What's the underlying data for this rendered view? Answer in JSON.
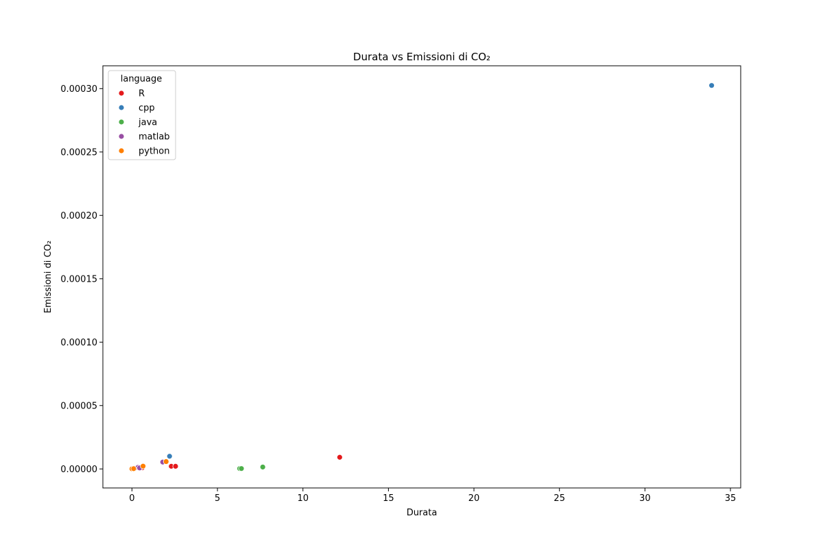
{
  "chart_data": {
    "type": "scatter",
    "title": "Durata vs Emissioni di CO₂",
    "xlabel": "Durata",
    "ylabel": "Emissioni di CO₂",
    "xlim": [
      -1.7,
      35.6
    ],
    "ylim": [
      -1.5e-05,
      0.000318
    ],
    "xticks": [
      0,
      5,
      10,
      15,
      20,
      25,
      30,
      35
    ],
    "yticks": [
      0.0,
      5e-05,
      0.0001,
      0.00015,
      0.0002,
      0.00025,
      0.0003
    ],
    "ytick_labels": [
      "0.00000",
      "0.00005",
      "0.00010",
      "0.00015",
      "0.00020",
      "0.00025",
      "0.00030"
    ],
    "grid": false,
    "legend": {
      "title": "language",
      "position": "top-left"
    },
    "series": [
      {
        "name": "R",
        "color": "#e41a1c",
        "points": [
          [
            12.15,
            9.2e-06
          ],
          [
            2.3,
            2.1e-06
          ],
          [
            2.55,
            2.1e-06
          ],
          [
            0.6,
            9e-07
          ]
        ]
      },
      {
        "name": "cpp",
        "color": "#377eb8",
        "points": [
          [
            33.9,
            0.0003025
          ],
          [
            2.2,
            1e-05
          ],
          [
            0.5,
            1.2e-06
          ]
        ]
      },
      {
        "name": "java",
        "color": "#4daf4a",
        "points": [
          [
            7.65,
            1.5e-06
          ],
          [
            6.3,
            3e-07
          ],
          [
            6.4,
            3e-07
          ]
        ]
      },
      {
        "name": "matlab",
        "color": "#984ea3",
        "points": [
          [
            1.8,
            5.4e-06
          ],
          [
            0.2,
            6e-07
          ],
          [
            0.3,
            1e-06
          ],
          [
            0.35,
            1.2e-06
          ],
          [
            0.45,
            8e-07
          ]
        ]
      },
      {
        "name": "python",
        "color": "#ff7f00",
        "points": [
          [
            2.0,
            5.8e-06
          ],
          [
            0.65,
            2.2e-06
          ],
          [
            0.05,
            2e-07
          ],
          [
            0.0,
            1e-07
          ],
          [
            0.1,
            2e-07
          ]
        ]
      }
    ]
  }
}
